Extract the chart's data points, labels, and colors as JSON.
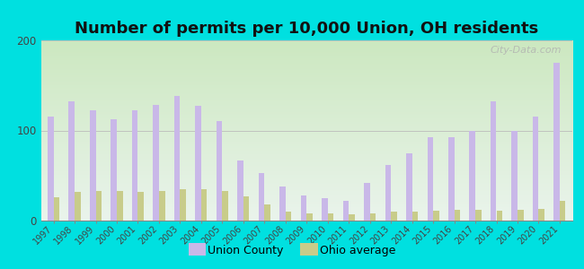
{
  "title": "Number of permits per 10,000 Union, OH residents",
  "years": [
    1997,
    1998,
    1999,
    2000,
    2001,
    2002,
    2003,
    2004,
    2005,
    2006,
    2007,
    2008,
    2009,
    2010,
    2011,
    2012,
    2013,
    2014,
    2015,
    2016,
    2017,
    2018,
    2019,
    2020,
    2021
  ],
  "union_county": [
    115,
    132,
    122,
    112,
    122,
    128,
    138,
    127,
    110,
    67,
    53,
    38,
    28,
    25,
    22,
    42,
    62,
    75,
    93,
    93,
    100,
    132,
    100,
    115,
    175
  ],
  "ohio_avg": [
    26,
    32,
    33,
    33,
    32,
    33,
    35,
    35,
    33,
    27,
    18,
    10,
    8,
    8,
    7,
    8,
    10,
    10,
    11,
    12,
    12,
    11,
    12,
    13,
    22
  ],
  "bar_width": 0.28,
  "union_color": "#c9b8e8",
  "ohio_color": "#c8cc8a",
  "background_outer": "#00e0e0",
  "background_plot_top": "#eaf4ec",
  "background_plot_bottom": "#cce8c0",
  "ylim": [
    0,
    200
  ],
  "yticks": [
    0,
    100,
    200
  ],
  "title_fontsize": 13,
  "legend_labels": [
    "Union County",
    "Ohio average"
  ],
  "watermark": "City-Data.com"
}
